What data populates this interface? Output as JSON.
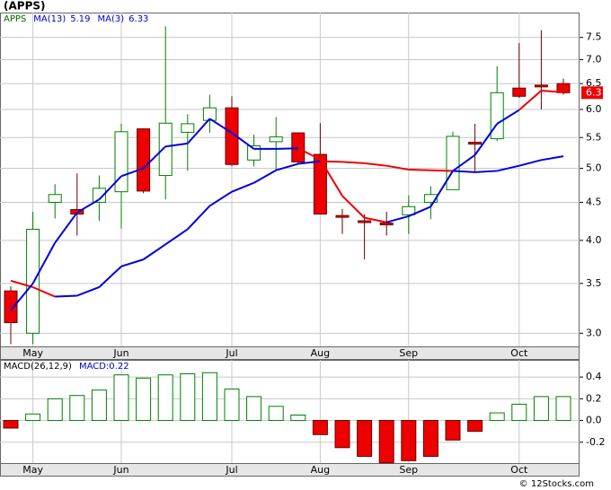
{
  "chart_data": [
    {
      "type": "candlestick",
      "title": "(APPS)",
      "symbol": "APPS",
      "categories": [
        null,
        "May",
        null,
        null,
        null,
        "Jun",
        null,
        null,
        null,
        null,
        "Jul",
        null,
        null,
        null,
        "Aug",
        null,
        null,
        null,
        "Sep",
        null,
        null,
        null,
        null,
        "Oct",
        null,
        null
      ],
      "open": [
        3.42,
        3.0,
        4.5,
        4.4,
        4.5,
        4.65,
        5.65,
        4.89,
        5.59,
        5.8,
        6.03,
        5.13,
        5.43,
        5.58,
        5.22,
        4.32,
        4.25,
        4.22,
        4.33,
        4.5,
        4.68,
        5.42,
        5.48,
        6.41,
        6.47,
        6.5
      ],
      "high": [
        3.47,
        4.37,
        4.76,
        4.92,
        4.89,
        5.74,
        5.66,
        7.76,
        5.91,
        6.28,
        6.25,
        5.55,
        5.86,
        5.58,
        5.75,
        4.41,
        4.34,
        4.37,
        4.6,
        4.73,
        5.6,
        5.74,
        6.86,
        7.37,
        7.67,
        6.6
      ],
      "low": [
        2.9,
        2.9,
        4.28,
        4.06,
        4.25,
        4.15,
        4.63,
        4.54,
        4.96,
        5.58,
        5.03,
        5.03,
        4.97,
        5.06,
        4.34,
        4.08,
        3.77,
        4.06,
        4.08,
        4.27,
        4.68,
        4.94,
        5.44,
        6.22,
        6.0,
        6.28
      ],
      "close": [
        3.1,
        4.14,
        4.61,
        4.34,
        4.7,
        5.6,
        4.66,
        5.75,
        5.74,
        6.03,
        5.06,
        5.36,
        5.51,
        5.1,
        4.34,
        4.31,
        4.23,
        4.21,
        4.44,
        4.61,
        5.52,
        5.4,
        6.32,
        6.25,
        6.44,
        6.32
      ],
      "up_color": "#008000",
      "down_color": "#ee0000",
      "last_price_label": "6.3",
      "series": [
        {
          "name": "MA(13)",
          "values": [
            3.53,
            3.46,
            3.36,
            3.37,
            3.46,
            3.69,
            3.77,
            3.95,
            4.14,
            4.45,
            4.65,
            4.78,
            4.97,
            5.07,
            5.11,
            5.1,
            5.08,
            5.04,
            4.98,
            4.97,
            4.96,
            4.94,
            4.96,
            5.04,
            5.13,
            5.19
          ],
          "segment_colors": [
            "#ee0000",
            "#ee0000",
            "#0000dd",
            "#0000dd",
            "#0000dd",
            "#0000dd",
            "#0000dd",
            "#0000dd",
            "#0000dd",
            "#0000dd",
            "#0000dd",
            "#0000dd",
            "#0000dd",
            "#0000dd",
            "#ee0000",
            "#ee0000",
            "#ee0000",
            "#ee0000",
            "#ee0000",
            "#ee0000",
            "#0000dd",
            "#0000dd",
            "#0000dd",
            "#0000dd",
            "#0000dd"
          ]
        },
        {
          "name": "MA(3)",
          "values": [
            3.22,
            3.5,
            3.97,
            4.36,
            4.54,
            4.88,
            5.0,
            5.35,
            5.4,
            5.83,
            5.58,
            5.31,
            5.31,
            5.32,
            5.14,
            4.59,
            4.29,
            4.23,
            4.31,
            4.44,
            4.96,
            5.21,
            5.74,
            5.99,
            6.36,
            6.33
          ],
          "segment_colors": [
            "#0000dd",
            "#0000dd",
            "#0000dd",
            "#0000dd",
            "#0000dd",
            "#0000dd",
            "#0000dd",
            "#0000dd",
            "#0000dd",
            "#0000dd",
            "#0000dd",
            "#0000dd",
            "#0000dd",
            "#ee0000",
            "#ee0000",
            "#ee0000",
            "#ee0000",
            "#0000dd",
            "#0000dd",
            "#0000dd",
            "#0000dd",
            "#0000dd",
            "#0000dd",
            "#ee0000",
            "#ee0000"
          ]
        }
      ],
      "log_scale": true,
      "ylim": [
        2.88,
        8.1
      ],
      "yticks": [
        {
          "value": 3,
          "label": "3.0"
        },
        3.5,
        {
          "value": 4,
          "label": "4.0"
        },
        4.5,
        {
          "value": 5,
          "label": "5.0"
        },
        5.5,
        {
          "value": 6,
          "label": "6.0"
        },
        6.5,
        {
          "value": 7,
          "label": "7.0"
        },
        7.5
      ],
      "grid": true
    },
    {
      "type": "bar",
      "title": "MACD(26,12,9)",
      "last_label": "MACD:0.22",
      "categories": [
        null,
        "May",
        null,
        null,
        null,
        "Jun",
        null,
        null,
        null,
        null,
        "Jul",
        null,
        null,
        null,
        "Aug",
        null,
        null,
        null,
        "Sep",
        null,
        null,
        null,
        null,
        "Oct",
        null,
        null
      ],
      "values": [
        -0.07,
        0.06,
        0.2,
        0.23,
        0.28,
        0.42,
        0.39,
        0.42,
        0.43,
        0.44,
        0.29,
        0.22,
        0.13,
        0.05,
        -0.13,
        -0.25,
        -0.33,
        -0.39,
        -0.37,
        -0.33,
        -0.18,
        -0.1,
        0.07,
        0.15,
        0.22,
        0.22
      ],
      "up_color": "#008000",
      "down_color": "#ee0000",
      "ylim": [
        -0.392,
        0.558
      ],
      "yticks": [
        -0.2,
        {
          "value": 0,
          "label": "0.0"
        },
        0.2,
        0.4
      ],
      "grid": true
    }
  ],
  "footer": "© 12Stocks.com"
}
